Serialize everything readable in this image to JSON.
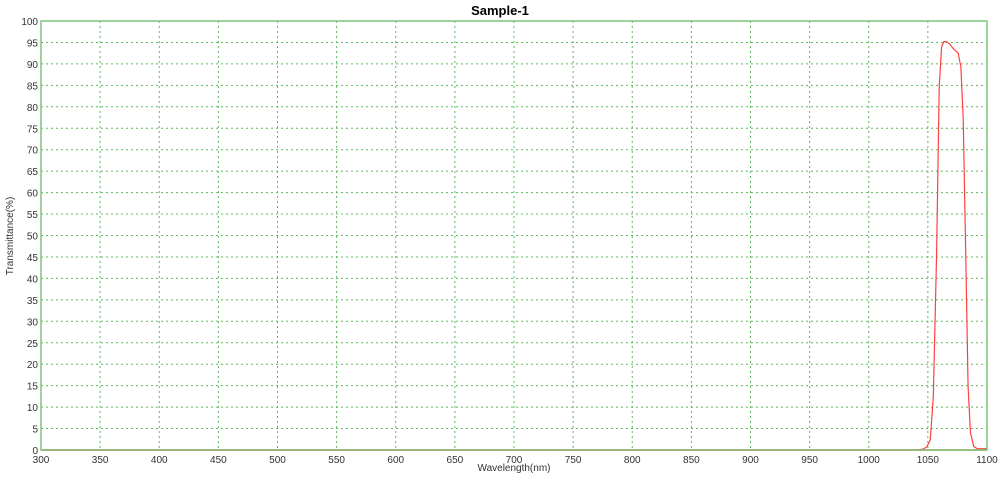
{
  "chart_data": {
    "type": "line",
    "title": "Sample-1",
    "xlabel": "Wavelength(nm)",
    "ylabel": "Transmittance(%)",
    "xlim": [
      300,
      1100
    ],
    "ylim": [
      0,
      100
    ],
    "xticks": [
      300,
      350,
      400,
      450,
      500,
      550,
      600,
      650,
      700,
      750,
      800,
      850,
      900,
      950,
      1000,
      1050,
      1100
    ],
    "yticks": [
      0,
      5,
      10,
      15,
      20,
      25,
      30,
      35,
      40,
      45,
      50,
      55,
      60,
      65,
      70,
      75,
      80,
      85,
      90,
      95,
      100
    ],
    "grid": true,
    "colors": {
      "line": "#ff4040",
      "grid": "#5cb85c",
      "frame": "#7cc47c"
    },
    "series": [
      {
        "x": [
          300,
          1040,
          1046,
          1049,
          1052,
          1054.6,
          1057.4,
          1059.6,
          1061.6,
          1063.5,
          1065.8,
          1068.5,
          1071.4,
          1075.6,
          1077.9,
          1079.9,
          1082,
          1084,
          1086,
          1088.8,
          1092,
          1100
        ],
        "y": [
          0,
          0,
          0.2,
          0.7,
          2.3,
          12.4,
          46,
          84.7,
          94,
          95.2,
          95.2,
          94.6,
          93.6,
          92.5,
          89.3,
          77,
          46,
          14.8,
          4,
          0.8,
          0.3,
          0.3
        ]
      }
    ]
  }
}
